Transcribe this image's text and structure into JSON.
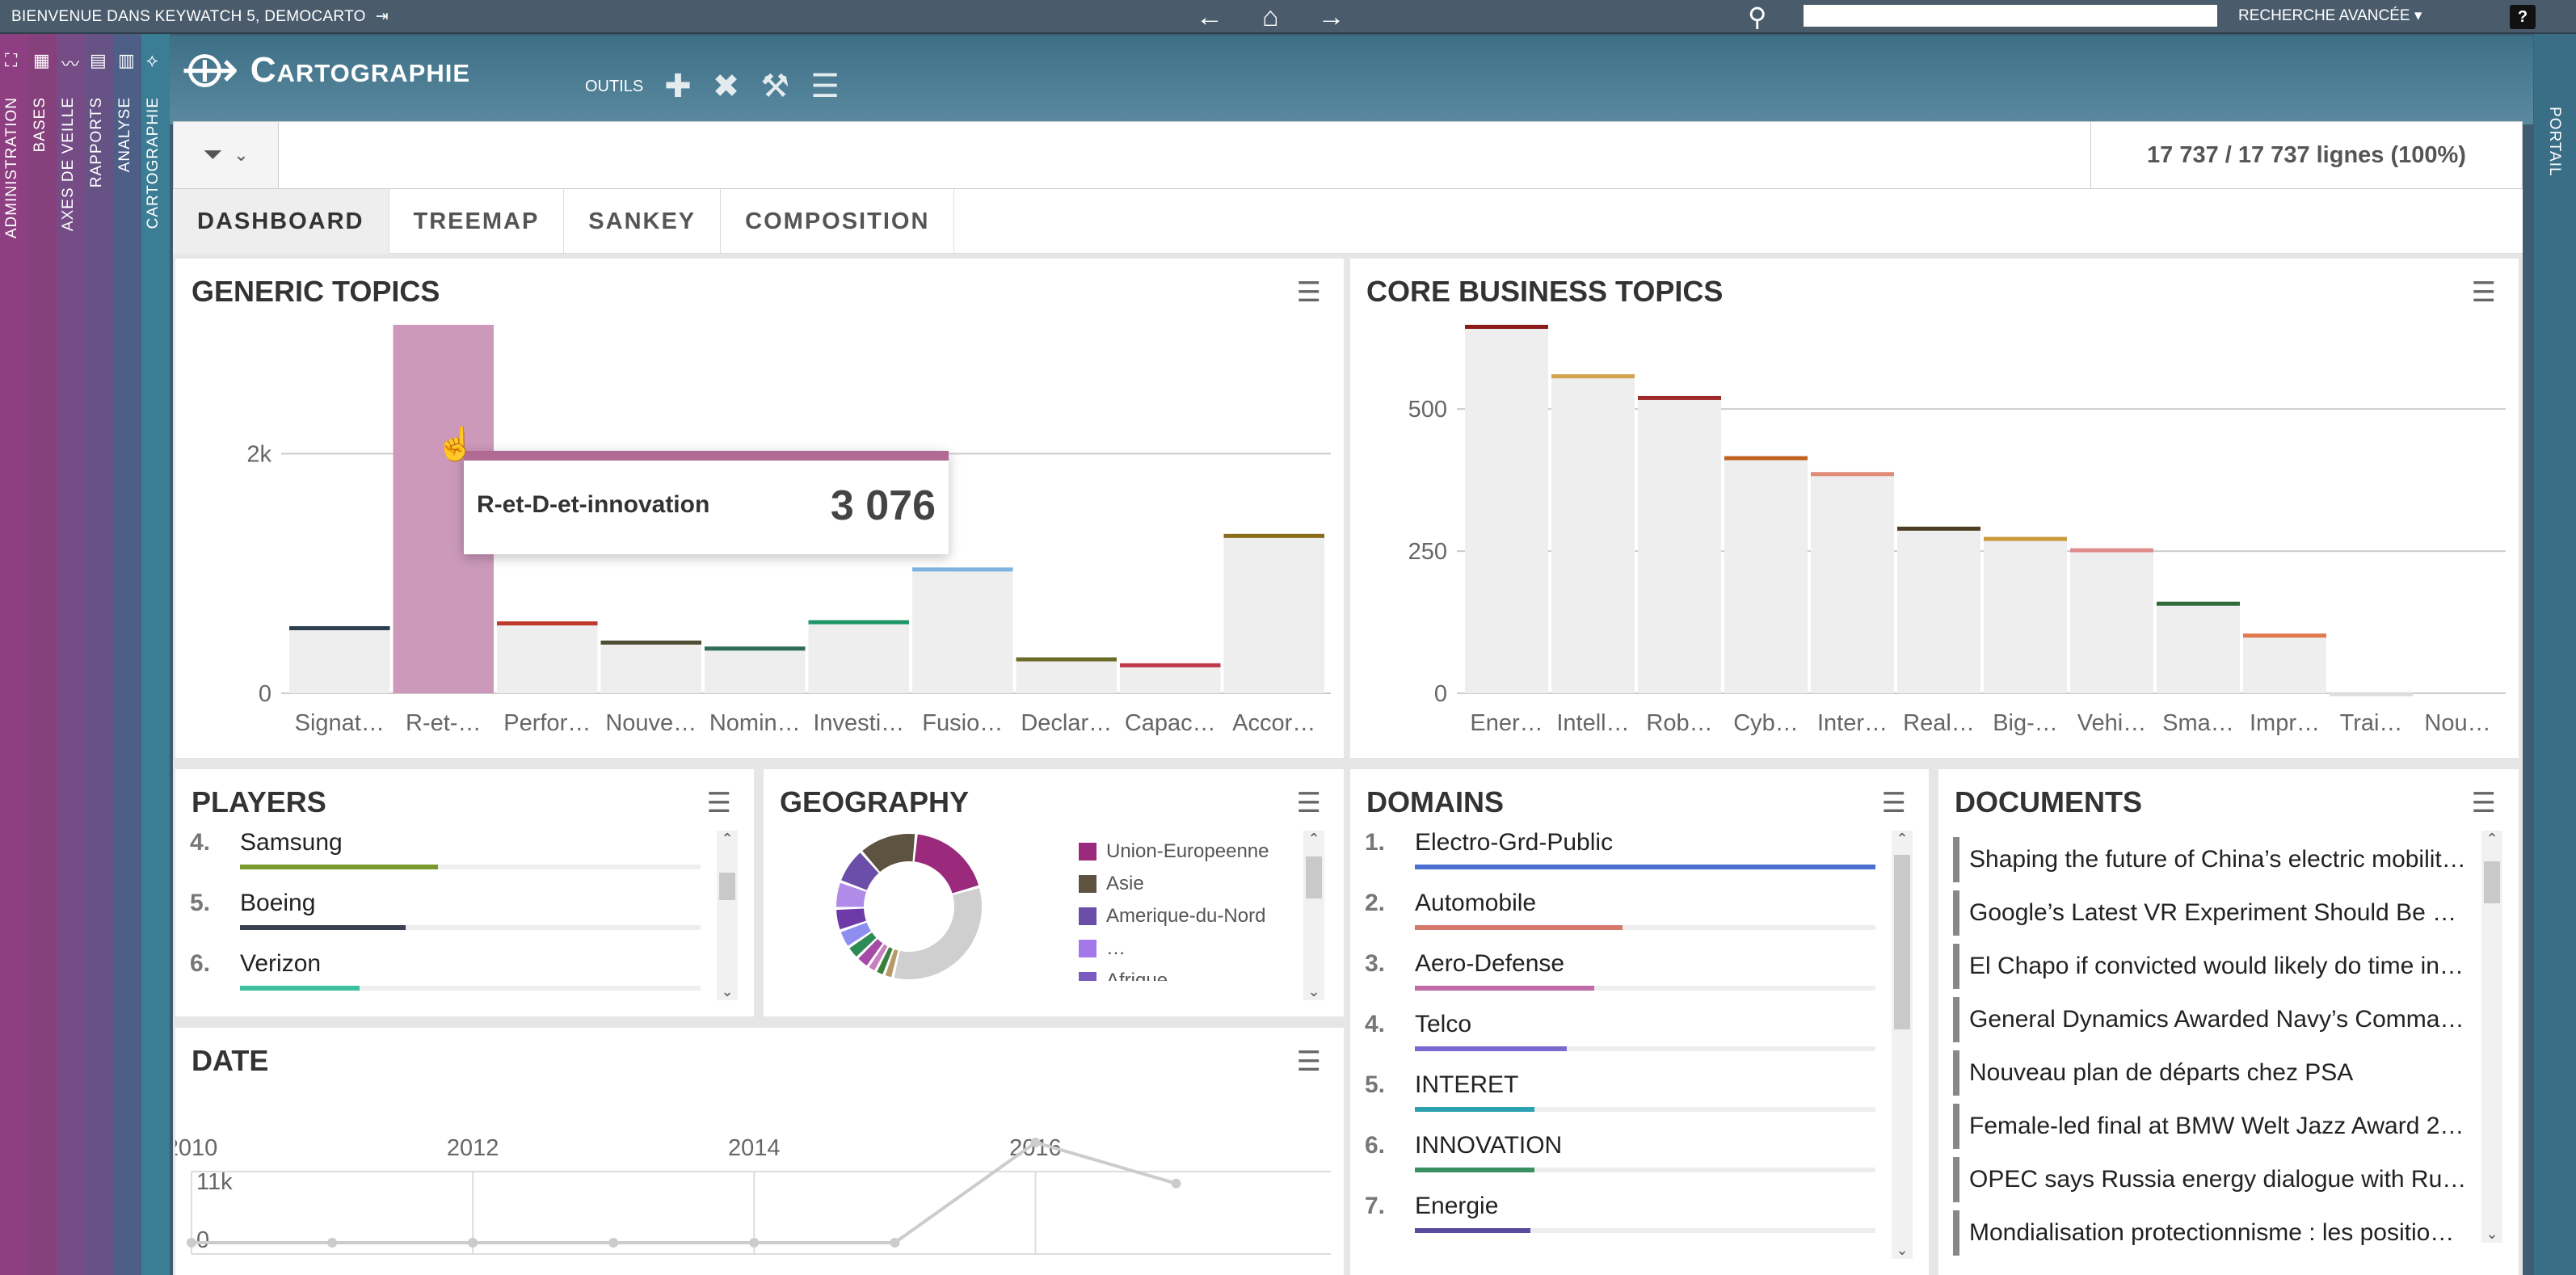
{
  "topbar": {
    "welcome": "Bienvenue dans Keywatch 5, Democarto",
    "advanced_search": "Recherche avancée",
    "help": "?"
  },
  "sidebars": [
    {
      "label": "Administration",
      "color": "#8e3f82"
    },
    {
      "label": "Bases",
      "color": "#86407c"
    },
    {
      "label": "Axes de veille",
      "color": "#754c86"
    },
    {
      "label": "Rapports",
      "color": "#665284"
    },
    {
      "label": "Analyse",
      "color": "#4d5f86"
    },
    {
      "label": "Cartographie",
      "color": "#3c7d96"
    }
  ],
  "rightbar": {
    "label": "Portail"
  },
  "header": {
    "title": "Cartographie",
    "tools_label": "OUTILS"
  },
  "filter": {
    "row_count": "17 737 / 17 737 lignes (100%)"
  },
  "tabs": [
    {
      "label": "Dashboard",
      "active": true
    },
    {
      "label": "Treemap",
      "active": false
    },
    {
      "label": "Sankey",
      "active": false
    },
    {
      "label": "Composition",
      "active": false
    }
  ],
  "panels": {
    "generic_topics": {
      "title": "Generic Topics",
      "tooltip": {
        "label": "R-et-D-et-innovation",
        "value": "3 076"
      },
      "chart_data": {
        "type": "bar",
        "categories": [
          "Signat…",
          "R-et-…",
          "Perfor…",
          "Nouve…",
          "Nomin…",
          "Investi…",
          "Fusio…",
          "Declar…",
          "Capac…",
          "Accor…"
        ],
        "values": [
          560,
          3076,
          600,
          440,
          390,
          610,
          1050,
          300,
          250,
          1330
        ],
        "colors": [
          "#2c3e50",
          "#cc99bb",
          "#c0392b",
          "#4d4d33",
          "#2e6b5a",
          "#1e9468",
          "#7fb3e0",
          "#6b6b2a",
          "#c0394b",
          "#8a6d1a"
        ],
        "highlighted": 1,
        "yticks": [
          "0",
          "2k"
        ],
        "ylim": [
          0,
          3076
        ]
      }
    },
    "core_business_topics": {
      "title": "Core Business Topics",
      "chart_data": {
        "type": "bar",
        "categories": [
          "Ener…",
          "Intell…",
          "Rob…",
          "Cyb…",
          "Inter…",
          "Real…",
          "Big-…",
          "Vehi…",
          "Sma…",
          "Impr…",
          "Trai…",
          "Nou…"
        ],
        "values": [
          648,
          561,
          523,
          417,
          389,
          293,
          275,
          255,
          161,
          105,
          2,
          0
        ],
        "colors": [
          "#8b1a1a",
          "#d4a350",
          "#a12b2b",
          "#c0601e",
          "#e08c78",
          "#4d3d22",
          "#c89a3a",
          "#e08c8c",
          "#2d6b3a",
          "#e07850",
          "#dddddd",
          "#dddddd"
        ],
        "yticks": [
          "0",
          "250",
          "500"
        ],
        "ylim": [
          0,
          648
        ]
      }
    },
    "players": {
      "title": "Players",
      "items": [
        {
          "rank": "4.",
          "name": "Samsung",
          "pct": 0.43,
          "color": "#7a9a2e"
        },
        {
          "rank": "5.",
          "name": "Boeing",
          "pct": 0.36,
          "color": "#3a4150"
        },
        {
          "rank": "6.",
          "name": "Verizon",
          "pct": 0.26,
          "color": "#3ebfa0"
        }
      ]
    },
    "geography": {
      "title": "Geography",
      "legend": [
        {
          "label": "Union-Europeenne",
          "color": "#9b2a7c"
        },
        {
          "label": "Asie",
          "color": "#5e5240"
        },
        {
          "label": "Amerique-du-Nord",
          "color": "#6a4ea8"
        },
        {
          "label": "…",
          "color": "#a478e8"
        },
        {
          "label": "Afrique",
          "color": "#7a5cc0"
        }
      ],
      "chart_data": {
        "type": "pie",
        "labels": [
          "Union-Europeenne",
          "(unlabeled)",
          "(unlabeled)",
          "(unlabeled)",
          "(unlabeled)",
          "(unlabeled)",
          "(unlabeled)",
          "(unlabeled)",
          "(unlabeled)",
          "(unlabeled)",
          "Amerique-du-Nord",
          "Asie"
        ],
        "values": [
          19,
          33,
          2,
          2,
          2,
          3,
          3,
          4,
          5,
          6,
          8,
          13
        ],
        "colors": [
          "#9b2a7c",
          "#cfcfcf",
          "#b79a6a",
          "#3b7f3b",
          "#c87fc0",
          "#a64aa6",
          "#2e8b57",
          "#8e8ef0",
          "#6d3aa8",
          "#b08be8",
          "#6a4ea8",
          "#5e5240"
        ]
      }
    },
    "domains": {
      "title": "Domains",
      "items": [
        {
          "rank": "1.",
          "name": "Electro-Grd-Public",
          "pct": 1.0,
          "color": "#4a6fd0"
        },
        {
          "rank": "2.",
          "name": "Automobile",
          "pct": 0.45,
          "color": "#d57a6a"
        },
        {
          "rank": "3.",
          "name": "Aero-Defense",
          "pct": 0.39,
          "color": "#c06aa8"
        },
        {
          "rank": "4.",
          "name": "Telco",
          "pct": 0.33,
          "color": "#7a6ad0"
        },
        {
          "rank": "5.",
          "name": "INTERET",
          "pct": 0.26,
          "color": "#2aa0b0"
        },
        {
          "rank": "6.",
          "name": "INNOVATION",
          "pct": 0.26,
          "color": "#3a9060"
        },
        {
          "rank": "7.",
          "name": "Energie",
          "pct": 0.25,
          "color": "#5a4aa0"
        }
      ]
    },
    "documents": {
      "title": "Documents",
      "items": [
        "Shaping the future of China’s electric mobilit…",
        "Google’s Latest VR Experiment Should Be …",
        "El Chapo if convicted would likely do time in…",
        "General Dynamics Awarded Navy’s Comma…",
        "Nouveau plan de départs chez PSA",
        "Female-led final at BMW Welt Jazz Award 2…",
        "OPEC says Russia energy dialogue with Ru…",
        "Mondialisation protectionnisme : les positio…"
      ]
    },
    "date": {
      "title": "Date",
      "chart_data": {
        "type": "line",
        "xticks": [
          "2010",
          "2012",
          "2014",
          "2016"
        ],
        "yticks": [
          "0",
          "11k"
        ],
        "x": [
          2010,
          2011,
          2012,
          2013,
          2014,
          2015,
          2016,
          2017
        ],
        "values": [
          0,
          0,
          0,
          0,
          0,
          0,
          11000,
          6500
        ],
        "ylim": [
          0,
          11000
        ]
      }
    }
  }
}
